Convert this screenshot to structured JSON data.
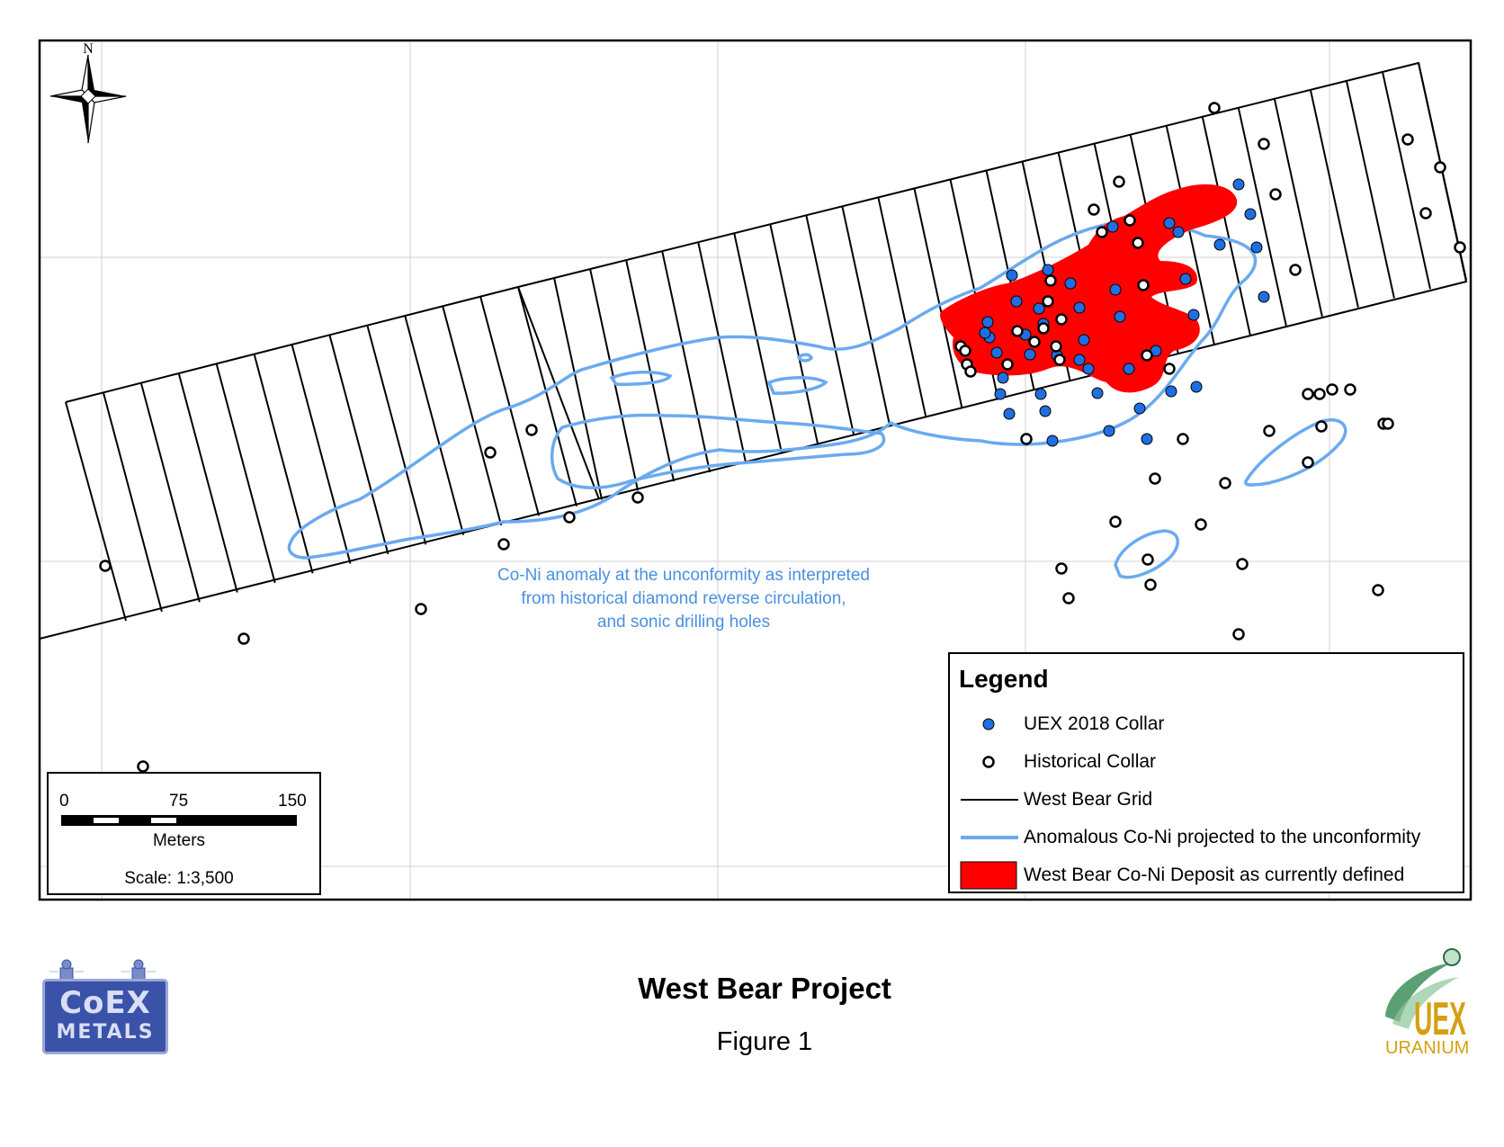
{
  "map": {
    "north_label": "N",
    "annotation_lines": [
      "Co-Ni anomaly at the unconformity as interpreted",
      "from historical diamond reverse circulation,",
      "and sonic drilling holes"
    ]
  },
  "legend": {
    "title": "Legend",
    "items": [
      {
        "label": "UEX 2018 Collar",
        "symbol": "blue-dot",
        "color": "#1f6fe0"
      },
      {
        "label": "Historical Collar",
        "symbol": "open-circle",
        "color": "#000000"
      },
      {
        "label": "West Bear Grid",
        "symbol": "black-line",
        "color": "#000000"
      },
      {
        "label": "Anomalous Co-Ni projected to the unconformity",
        "symbol": "blue-line",
        "color": "#6aaaf0"
      },
      {
        "label": "West Bear Co-Ni Deposit as currently defined",
        "symbol": "red-fill",
        "color": "#ff0000"
      }
    ]
  },
  "scale": {
    "ticks": [
      "0",
      "75",
      "150"
    ],
    "units": "Meters",
    "ratio": "Scale: 1:3,500"
  },
  "title": "West Bear Project",
  "subtitle": "Figure 1",
  "logos": {
    "coex_line1": "CoEX",
    "coex_line2": "METALS",
    "uex_letters": "UEX",
    "uex_word": "URANIUM"
  },
  "colors": {
    "deposit": "#ff0000",
    "anomaly": "#6aaaf0",
    "uex_collar": "#1f6fe0",
    "grid_line": "#000000",
    "graticule": "#d0d0d0"
  }
}
